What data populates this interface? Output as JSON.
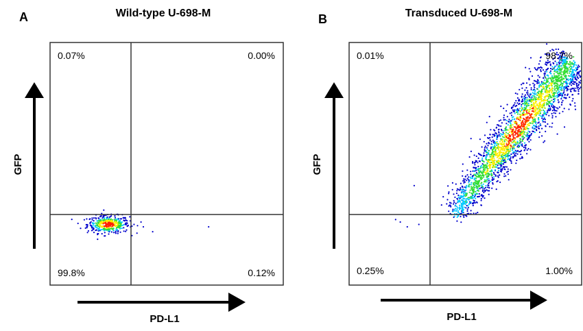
{
  "chart_data": [
    {
      "type": "scatter",
      "panel_letter": "A",
      "title": "Wild-type U-698-M",
      "xlabel": "PD-L1",
      "ylabel": "GFP",
      "quadrants": {
        "upper_left": "0.07%",
        "upper_right": "0.00%",
        "lower_left": "99.8%",
        "lower_right": "0.12%"
      },
      "gate_x": 0.35,
      "gate_y": 0.29,
      "population": {
        "shape": "cluster",
        "center_x": 0.25,
        "center_y": 0.25,
        "spread_x": 0.045,
        "spread_y": 0.018,
        "count": 420
      },
      "outliers": [
        [
          0.31,
          0.29
        ],
        [
          0.36,
          0.25
        ],
        [
          0.4,
          0.24
        ],
        [
          0.44,
          0.22
        ],
        [
          0.68,
          0.24
        ],
        [
          0.39,
          0.26
        ]
      ],
      "ylim": [
        0,
        1
      ],
      "xlim": [
        0,
        1
      ],
      "colors": {
        "low": "#0000cc",
        "mid": "#00c8ff",
        "mid2": "#33dd33",
        "high": "#ffee00",
        "peak": "#ff2200"
      }
    },
    {
      "type": "scatter",
      "panel_letter": "B",
      "title": "Transduced U-698-M",
      "xlabel": "PD-L1",
      "ylabel": "GFP",
      "quadrants": {
        "upper_left": "0.01%",
        "upper_right": "98.7%",
        "lower_left": "0.25%",
        "lower_right": "1.00%"
      },
      "gate_x": 0.35,
      "gate_y": 0.29,
      "population": {
        "shape": "diagonal-band",
        "start_x": 0.45,
        "start_y": 0.28,
        "end_x": 0.96,
        "end_y": 0.92,
        "count": 2600
      },
      "outliers": [
        [
          0.28,
          0.41
        ],
        [
          0.3,
          0.25
        ],
        [
          0.22,
          0.26
        ],
        [
          0.25,
          0.24
        ],
        [
          0.2,
          0.27
        ]
      ],
      "ylim": [
        0,
        1
      ],
      "xlim": [
        0,
        1
      ],
      "colors": {
        "low": "#0000cc",
        "mid": "#00c8ff",
        "mid2": "#33dd33",
        "high": "#ffee00",
        "peak": "#ff2200"
      }
    }
  ]
}
